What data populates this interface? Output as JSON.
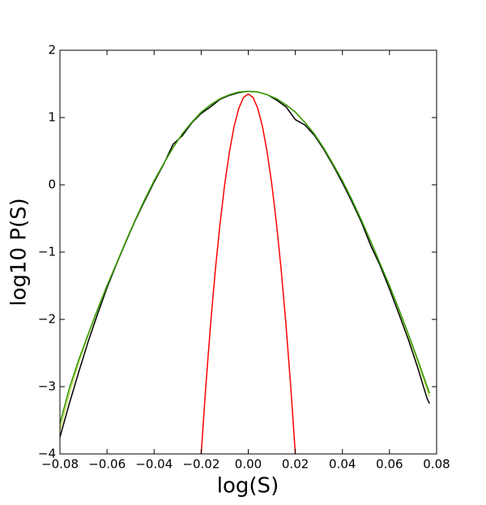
{
  "chart_data": {
    "type": "line",
    "xlabel": "log(S)",
    "ylabel": "log10 P(S)",
    "xlim": [
      -0.08,
      0.08
    ],
    "ylim": [
      -4,
      2
    ],
    "xticks": [
      {
        "value": -0.08,
        "label": "−0.08"
      },
      {
        "value": -0.06,
        "label": "−0.06"
      },
      {
        "value": -0.04,
        "label": "−0.04"
      },
      {
        "value": -0.02,
        "label": "−0.02"
      },
      {
        "value": 0,
        "label": "0.00"
      },
      {
        "value": 0.02,
        "label": "0.02"
      },
      {
        "value": 0.04,
        "label": "0.04"
      },
      {
        "value": 0.06,
        "label": "0.06"
      },
      {
        "value": 0.08,
        "label": "0.08"
      }
    ],
    "yticks": [
      {
        "value": -4,
        "label": "−4"
      },
      {
        "value": -3,
        "label": "−3"
      },
      {
        "value": -2,
        "label": "−2"
      },
      {
        "value": -1,
        "label": "−1"
      },
      0,
      1,
      2
    ],
    "series": [
      {
        "color": "#000000",
        "x": [
          -0.08,
          -0.076,
          -0.072,
          -0.068,
          -0.064,
          -0.06,
          -0.056,
          -0.052,
          -0.048,
          -0.044,
          -0.04,
          -0.036,
          -0.032,
          -0.028,
          -0.024,
          -0.02,
          -0.016,
          -0.012,
          -0.008,
          -0.004,
          0,
          0.004,
          0.008,
          0.012,
          0.016,
          0.02,
          0.024,
          0.028,
          0.032,
          0.036,
          0.04,
          0.044,
          0.048,
          0.052,
          0.056,
          0.06,
          0.064,
          0.068,
          0.072,
          0.076,
          0.077
        ],
        "values": [
          -3.75,
          -3.25,
          -2.78,
          -2.33,
          -1.92,
          -1.53,
          -1.18,
          -0.85,
          -0.53,
          -0.24,
          0.04,
          0.3,
          0.6,
          0.73,
          0.92,
          1.06,
          1.16,
          1.27,
          1.33,
          1.37,
          1.39,
          1.38,
          1.34,
          1.26,
          1.16,
          0.97,
          0.89,
          0.74,
          0.53,
          0.29,
          0.03,
          -0.25,
          -0.55,
          -0.9,
          -1.2,
          -1.55,
          -1.92,
          -2.3,
          -2.72,
          -3.18,
          -3.25
        ]
      },
      {
        "color": "#c4dc5a",
        "x": [
          -0.08,
          -0.076,
          -0.072,
          -0.068,
          -0.064,
          -0.06,
          -0.056,
          -0.052,
          -0.048,
          -0.044,
          -0.04,
          -0.036,
          -0.032,
          -0.028,
          -0.024,
          -0.02,
          -0.016,
          -0.012,
          -0.008,
          -0.004,
          0,
          0.004,
          0.008,
          0.012,
          0.016,
          0.02,
          0.024,
          0.028,
          0.032,
          0.036,
          0.04,
          0.044,
          0.048,
          0.052,
          0.056,
          0.06,
          0.064,
          0.068,
          0.072,
          0.076,
          0.077
        ],
        "values": [
          -3.65,
          -3.1,
          -2.64,
          -2.24,
          -1.86,
          -1.5,
          -1.17,
          -0.84,
          -0.52,
          -0.22,
          0.06,
          0.31,
          0.55,
          0.76,
          0.93,
          1.08,
          1.19,
          1.28,
          1.34,
          1.38,
          1.39,
          1.38,
          1.34,
          1.28,
          1.19,
          1.08,
          0.93,
          0.76,
          0.55,
          0.31,
          0.06,
          -0.22,
          -0.52,
          -0.84,
          -1.17,
          -1.5,
          -1.86,
          -2.24,
          -2.63,
          -3.05,
          -3.15
        ]
      },
      {
        "color": "#2f9600",
        "x": [
          -0.08,
          -0.076,
          -0.072,
          -0.068,
          -0.064,
          -0.06,
          -0.056,
          -0.052,
          -0.048,
          -0.044,
          -0.04,
          -0.036,
          -0.032,
          -0.028,
          -0.024,
          -0.02,
          -0.016,
          -0.012,
          -0.008,
          -0.004,
          0,
          0.004,
          0.008,
          0.012,
          0.016,
          0.02,
          0.024,
          0.028,
          0.032,
          0.036,
          0.04,
          0.044,
          0.048,
          0.052,
          0.056,
          0.06,
          0.064,
          0.068,
          0.072,
          0.076,
          0.077
        ],
        "values": [
          -3.55,
          -3.02,
          -2.6,
          -2.22,
          -1.85,
          -1.5,
          -1.17,
          -0.84,
          -0.52,
          -0.22,
          0.06,
          0.31,
          0.55,
          0.76,
          0.93,
          1.08,
          1.19,
          1.28,
          1.34,
          1.38,
          1.39,
          1.38,
          1.34,
          1.28,
          1.19,
          1.08,
          0.93,
          0.76,
          0.55,
          0.31,
          0.06,
          -0.22,
          -0.52,
          -0.84,
          -1.17,
          -1.5,
          -1.85,
          -2.22,
          -2.6,
          -3.0,
          -3.1
        ]
      },
      {
        "color": "#ff0000",
        "x": [
          -0.02,
          -0.018,
          -0.016,
          -0.014,
          -0.012,
          -0.01,
          -0.008,
          -0.006,
          -0.004,
          -0.002,
          0,
          0.002,
          0.004,
          0.006,
          0.008,
          0.01,
          0.012,
          0.014,
          0.016,
          0.018,
          0.02
        ],
        "values": [
          -4.0,
          -2.98,
          -2.07,
          -1.27,
          -0.58,
          0.01,
          0.49,
          0.87,
          1.14,
          1.3,
          1.35,
          1.3,
          1.14,
          0.87,
          0.49,
          0.01,
          -0.58,
          -1.27,
          -2.07,
          -2.98,
          -4.0
        ]
      }
    ]
  }
}
